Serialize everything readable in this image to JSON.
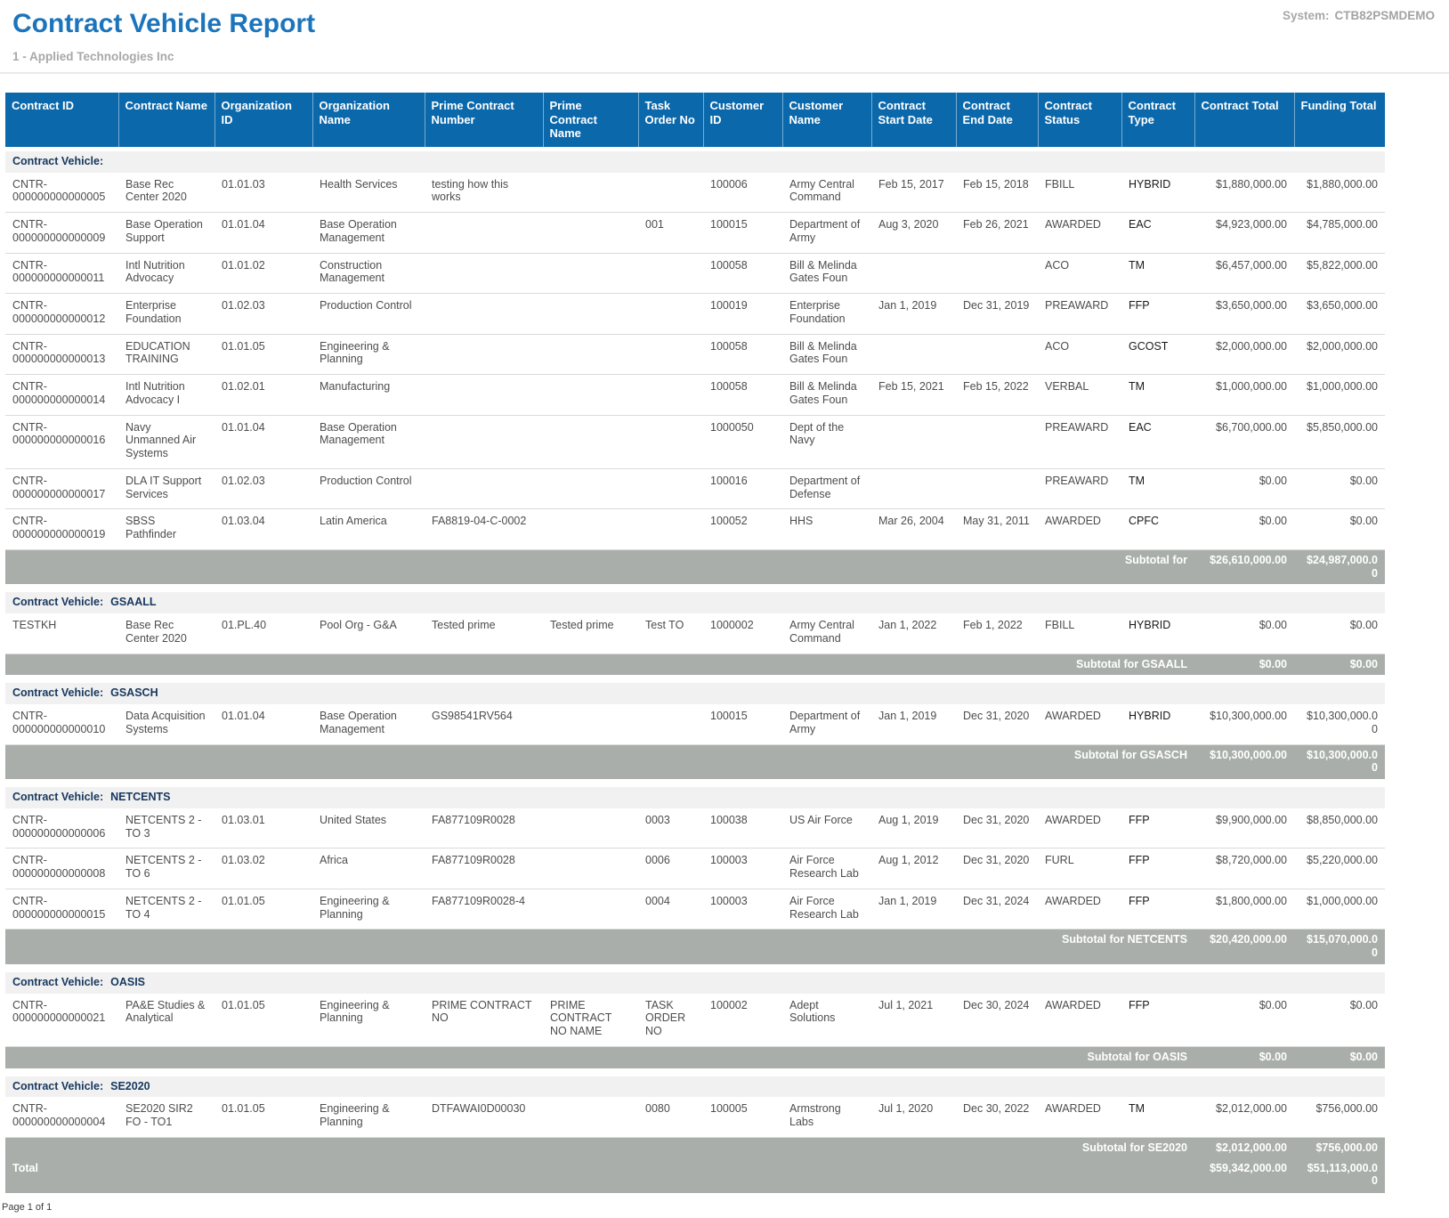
{
  "page": {
    "title": "Contract Vehicle Report",
    "system_label": "System:",
    "system_value": "CTB82PSMDEMO",
    "subtitle": "1 - Applied Technologies Inc",
    "footer": "Page 1 of 1"
  },
  "colors": {
    "title_blue": "#1c75bc",
    "table_header_bg": "#0a68ab",
    "section_header_bg": "#f1f1f1",
    "section_header_text": "#17375e",
    "subtotal_bg": "#a9aeab",
    "data_text": "#4d4d4d",
    "muted_text": "#a8a8a8"
  },
  "table": {
    "columns": [
      "Contract ID",
      "Contract Name",
      "Organization ID",
      "Organization Name",
      "Prime Contract Number",
      "Prime Contract Name",
      "Task Order No",
      "Customer ID",
      "Customer Name",
      "Contract Start Date",
      "Contract End Date",
      "Contract Status",
      "Contract Type",
      "Contract Total",
      "Funding Total"
    ],
    "group_label": "Contract Vehicle:",
    "sections": [
      {
        "vehicle": "",
        "rows": [
          [
            "CNTR-000000000000005",
            "Base Rec Center 2020",
            "01.01.03",
            "Health Services",
            "testing how this works",
            "",
            "",
            "100006",
            "Army Central Command",
            "Feb 15, 2017",
            "Feb 15, 2018",
            "FBILL",
            "HYBRID",
            "$1,880,000.00",
            "$1,880,000.00"
          ],
          [
            "CNTR-000000000000009",
            "Base Operation Support",
            "01.01.04",
            "Base Operation Management",
            "",
            "",
            "001",
            "100015",
            "Department of Army",
            "Aug 3, 2020",
            "Feb 26, 2021",
            "AWARDED",
            "EAC",
            "$4,923,000.00",
            "$4,785,000.00"
          ],
          [
            "CNTR-000000000000011",
            "Intl Nutrition Advocacy",
            "01.01.02",
            "Construction Management",
            "",
            "",
            "",
            "100058",
            "Bill & Melinda Gates Foun",
            "",
            "",
            "ACO",
            "TM",
            "$6,457,000.00",
            "$5,822,000.00"
          ],
          [
            "CNTR-000000000000012",
            "Enterprise Foundation",
            "01.02.03",
            "Production Control",
            "",
            "",
            "",
            "100019",
            "Enterprise Foundation",
            "Jan 1, 2019",
            "Dec 31, 2019",
            "PREAWARD",
            "FFP",
            "$3,650,000.00",
            "$3,650,000.00"
          ],
          [
            "CNTR-000000000000013",
            "EDUCATION TRAINING",
            "01.01.05",
            "Engineering & Planning",
            "",
            "",
            "",
            "100058",
            "Bill & Melinda Gates Foun",
            "",
            "",
            "ACO",
            "GCOST",
            "$2,000,000.00",
            "$2,000,000.00"
          ],
          [
            "CNTR-000000000000014",
            "Intl Nutrition Advocacy I",
            "01.02.01",
            "Manufacturing",
            "",
            "",
            "",
            "100058",
            "Bill & Melinda Gates Foun",
            "Feb 15, 2021",
            "Feb 15, 2022",
            "VERBAL",
            "TM",
            "$1,000,000.00",
            "$1,000,000.00"
          ],
          [
            "CNTR-000000000000016",
            "Navy Unmanned Air Systems",
            "01.01.04",
            "Base Operation Management",
            "",
            "",
            "",
            "1000050",
            "Dept of the Navy",
            "",
            "",
            "PREAWARD",
            "EAC",
            "$6,700,000.00",
            "$5,850,000.00"
          ],
          [
            "CNTR-000000000000017",
            "DLA IT Support Services",
            "01.02.03",
            "Production Control",
            "",
            "",
            "",
            "100016",
            "Department of Defense",
            "",
            "",
            "PREAWARD",
            "TM",
            "$0.00",
            "$0.00"
          ],
          [
            "CNTR-000000000000019",
            "SBSS Pathfinder",
            "01.03.04",
            "Latin America",
            "FA8819-04-C-0002",
            "",
            "",
            "100052",
            "HHS",
            "Mar 26, 2004",
            "May 31, 2011",
            "AWARDED",
            "CPFC",
            "$0.00",
            "$0.00"
          ]
        ],
        "subtotal": {
          "label": "Subtotal for",
          "contract_total": "$26,610,000.00",
          "funding_total": "$24,987,000.00"
        }
      },
      {
        "vehicle": "GSAALL",
        "rows": [
          [
            "TESTKH",
            "Base Rec Center 2020",
            "01.PL.40",
            "Pool Org - G&A",
            "Tested prime",
            "Tested prime",
            "Test TO",
            "1000002",
            "Army Central Command",
            "Jan 1, 2022",
            "Feb 1, 2022",
            "FBILL",
            "HYBRID",
            "$0.00",
            "$0.00"
          ]
        ],
        "subtotal": {
          "label": "Subtotal for GSAALL",
          "contract_total": "$0.00",
          "funding_total": "$0.00"
        }
      },
      {
        "vehicle": "GSASCH",
        "rows": [
          [
            "CNTR-000000000000010",
            "Data Acquisition Systems",
            "01.01.04",
            "Base Operation Management",
            "GS98541RV564",
            "",
            "",
            "100015",
            "Department of Army",
            "Jan 1, 2019",
            "Dec 31, 2020",
            "AWARDED",
            "HYBRID",
            "$10,300,000.00",
            "$10,300,000.00"
          ]
        ],
        "subtotal": {
          "label": "Subtotal for GSASCH",
          "contract_total": "$10,300,000.00",
          "funding_total": "$10,300,000.00"
        }
      },
      {
        "vehicle": "NETCENTS",
        "rows": [
          [
            "CNTR-000000000000006",
            "NETCENTS 2 - TO 3",
            "01.03.01",
            "United States",
            "FA877109R0028",
            "",
            "0003",
            "100038",
            "US Air Force",
            "Aug 1, 2019",
            "Dec 31, 2020",
            "AWARDED",
            "FFP",
            "$9,900,000.00",
            "$8,850,000.00"
          ],
          [
            "CNTR-000000000000008",
            "NETCENTS 2 - TO 6",
            "01.03.02",
            "Africa",
            "FA877109R0028",
            "",
            "0006",
            "100003",
            "Air Force Research Lab",
            "Aug 1, 2012",
            "Dec 31, 2020",
            "FURL",
            "FFP",
            "$8,720,000.00",
            "$5,220,000.00"
          ],
          [
            "CNTR-000000000000015",
            "NETCENTS 2 - TO 4",
            "01.01.05",
            "Engineering & Planning",
            "FA877109R0028-4",
            "",
            "0004",
            "100003",
            "Air Force Research Lab",
            "Jan 1, 2019",
            "Dec 31, 2024",
            "AWARDED",
            "FFP",
            "$1,800,000.00",
            "$1,000,000.00"
          ]
        ],
        "subtotal": {
          "label": "Subtotal for NETCENTS",
          "contract_total": "$20,420,000.00",
          "funding_total": "$15,070,000.00"
        }
      },
      {
        "vehicle": "OASIS",
        "rows": [
          [
            "CNTR-000000000000021",
            "PA&E Studies & Analytical",
            "01.01.05",
            "Engineering & Planning",
            "PRIME CONTRACT NO",
            "PRIME CONTRACT NO NAME",
            "TASK ORDER NO",
            "100002",
            "Adept Solutions",
            "Jul 1, 2021",
            "Dec 30, 2024",
            "AWARDED",
            "FFP",
            "$0.00",
            "$0.00"
          ]
        ],
        "subtotal": {
          "label": "Subtotal for OASIS",
          "contract_total": "$0.00",
          "funding_total": "$0.00"
        }
      },
      {
        "vehicle": "SE2020",
        "rows": [
          [
            "CNTR-000000000000004",
            "SE2020 SIR2 FO - TO1",
            "01.01.05",
            "Engineering & Planning",
            "DTFAWAI0D00030",
            "",
            "0080",
            "100005",
            "Armstrong Labs",
            "Jul 1, 2020",
            "Dec 30, 2022",
            "AWARDED",
            "TM",
            "$2,012,000.00",
            "$756,000.00"
          ]
        ],
        "subtotal": {
          "label": "Subtotal for SE2020",
          "contract_total": "$2,012,000.00",
          "funding_total": "$756,000.00"
        }
      }
    ],
    "total": {
      "label": "Total",
      "contract_total": "$59,342,000.00",
      "funding_total": "$51,113,000.00"
    }
  }
}
